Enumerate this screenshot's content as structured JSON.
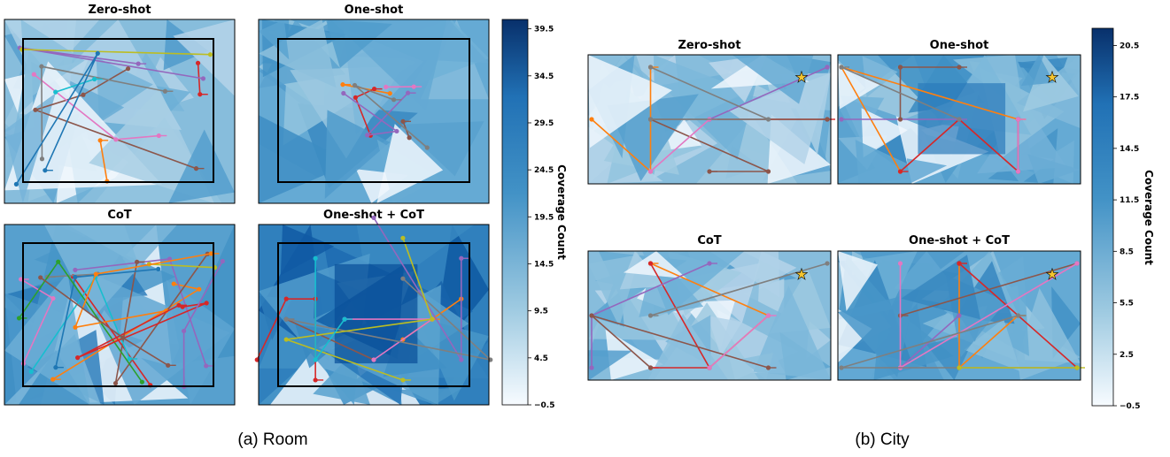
{
  "captions": {
    "room": "(a) Room",
    "city": "(b) City"
  },
  "panel_titles": {
    "zero_shot": "Zero-shot",
    "one_shot": "One-shot",
    "cot": "CoT",
    "one_shot_cot": "One-shot + CoT"
  },
  "colors": {
    "coverage_light": "#c6dbef",
    "coverage_dark": "#08306b",
    "boundary": "#000000",
    "star": "#f4c430",
    "paths": [
      "#ff7f0e",
      "#d62728",
      "#9467bd",
      "#8c564b",
      "#e377c2",
      "#7f7f7f",
      "#bcbd22",
      "#17becf",
      "#1f77b4",
      "#2ca02c"
    ]
  },
  "chart_data": [
    {
      "type": "heatmap",
      "title": "(a) Room",
      "panels": [
        "Zero-shot",
        "One-shot",
        "CoT",
        "One-shot + CoT"
      ],
      "colorbar": {
        "label": "Coverage Count",
        "range": [
          -0.5,
          40.5
        ],
        "ticks": [
          "39.5",
          "34.5",
          "29.5",
          "24.5",
          "19.5",
          "14.5",
          "9.5",
          "4.5",
          "−0.5"
        ]
      }
    },
    {
      "type": "heatmap",
      "title": "(b) City",
      "panels": [
        "Zero-shot",
        "One-shot",
        "CoT",
        "One-shot + CoT"
      ],
      "colorbar": {
        "label": "Coverage Count",
        "range": [
          -0.5,
          21.5
        ],
        "ticks": [
          "20.5",
          "17.5",
          "14.5",
          "11.5",
          "8.5",
          "5.5",
          "2.5",
          "−0.5"
        ]
      }
    }
  ]
}
